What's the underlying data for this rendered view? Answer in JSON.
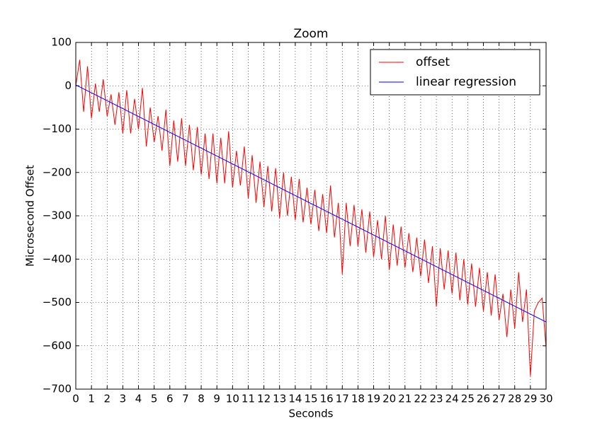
{
  "chart_data": {
    "type": "line",
    "title": "Zoom",
    "xlabel": "Seconds",
    "ylabel": "Microsecond Offset",
    "xlim": [
      0,
      30
    ],
    "ylim": [
      -700,
      100
    ],
    "xticks": [
      0,
      1,
      2,
      3,
      4,
      5,
      6,
      7,
      8,
      9,
      10,
      11,
      12,
      13,
      14,
      15,
      16,
      17,
      18,
      19,
      20,
      21,
      22,
      23,
      24,
      25,
      26,
      27,
      28,
      29,
      30
    ],
    "yticks": [
      {
        "value": -700,
        "label": "−700"
      },
      {
        "value": -600,
        "label": "−600"
      },
      {
        "value": -500,
        "label": "−500"
      },
      {
        "value": -400,
        "label": "−400"
      },
      {
        "value": -300,
        "label": "−300"
      },
      {
        "value": -200,
        "label": "−200"
      },
      {
        "value": -100,
        "label": "−100"
      },
      0,
      100
    ],
    "grid": true,
    "legend": "upper right",
    "series": [
      {
        "name": "offset",
        "color": "#ff0000",
        "x": [
          0,
          0.25,
          0.5,
          0.75,
          1,
          1.25,
          1.5,
          1.75,
          2,
          2.25,
          2.5,
          2.75,
          3,
          3.25,
          3.5,
          3.75,
          4,
          4.25,
          4.5,
          4.75,
          5,
          5.25,
          5.5,
          5.75,
          6,
          6.25,
          6.5,
          6.75,
          7,
          7.25,
          7.5,
          7.75,
          8,
          8.25,
          8.5,
          8.75,
          9,
          9.25,
          9.5,
          9.75,
          10,
          10.25,
          10.5,
          10.75,
          11,
          11.25,
          11.5,
          11.75,
          12,
          12.25,
          12.5,
          12.75,
          13,
          13.25,
          13.5,
          13.75,
          14,
          14.25,
          14.5,
          14.75,
          15,
          15.25,
          15.5,
          15.75,
          16,
          16.25,
          16.5,
          16.75,
          17,
          17.25,
          17.5,
          17.75,
          18,
          18.25,
          18.5,
          18.75,
          19,
          19.25,
          19.5,
          19.75,
          20,
          20.25,
          20.5,
          20.75,
          21,
          21.25,
          21.5,
          21.75,
          22,
          22.25,
          22.5,
          22.75,
          23,
          23.25,
          23.5,
          23.75,
          24,
          24.25,
          24.5,
          24.75,
          25,
          25.25,
          25.5,
          25.75,
          26,
          26.25,
          26.5,
          26.75,
          27,
          27.25,
          27.5,
          27.75,
          28,
          28.25,
          28.5,
          28.75,
          29,
          29.25,
          29.5,
          29.75,
          30
        ],
        "values": [
          0,
          60,
          -60,
          45,
          -75,
          5,
          -60,
          15,
          -70,
          -20,
          -90,
          -15,
          -110,
          -10,
          -110,
          -30,
          -100,
          -5,
          -140,
          -50,
          -130,
          -70,
          -150,
          -55,
          -185,
          -80,
          -175,
          -75,
          -185,
          -90,
          -195,
          -95,
          -205,
          -110,
          -215,
          -110,
          -225,
          -120,
          -225,
          -105,
          -235,
          -150,
          -230,
          -140,
          -260,
          -160,
          -270,
          -175,
          -280,
          -185,
          -290,
          -190,
          -305,
          -200,
          -300,
          -210,
          -310,
          -215,
          -315,
          -235,
          -320,
          -240,
          -335,
          -250,
          -340,
          -230,
          -350,
          -270,
          -435,
          -270,
          -370,
          -275,
          -370,
          -285,
          -385,
          -290,
          -395,
          -310,
          -400,
          -300,
          -425,
          -320,
          -415,
          -325,
          -420,
          -340,
          -430,
          -350,
          -440,
          -355,
          -455,
          -370,
          -510,
          -375,
          -470,
          -380,
          -480,
          -385,
          -495,
          -400,
          -505,
          -410,
          -510,
          -420,
          -520,
          -430,
          -530,
          -435,
          -540,
          -480,
          -580,
          -470,
          -560,
          -430,
          -545,
          -470,
          -670,
          -520,
          -500,
          -490,
          -605
        ]
      },
      {
        "name": "linear regression",
        "color": "#0000ff",
        "x": [
          0,
          30
        ],
        "values": [
          2,
          -545
        ]
      }
    ]
  }
}
